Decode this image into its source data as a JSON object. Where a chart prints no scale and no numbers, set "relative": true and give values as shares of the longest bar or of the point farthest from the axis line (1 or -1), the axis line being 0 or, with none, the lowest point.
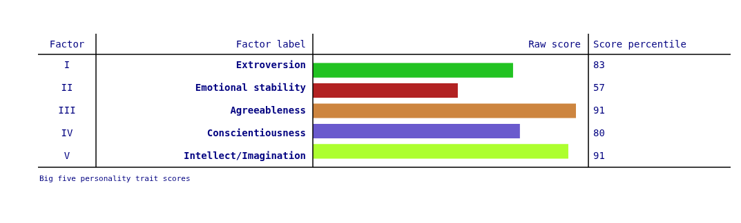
{
  "chart_data": {
    "type": "bar",
    "orientation": "horizontal",
    "relative": true,
    "xlabel": "Raw score",
    "categories": [
      "Extroversion",
      "Emotional stability",
      "Agreeableness",
      "Conscientiousness",
      "Intellect/Imagination"
    ],
    "values": [
      0.761,
      0.551,
      1,
      0.787,
      0.971
    ],
    "colors": [
      "#22c322",
      "#b22222",
      "#cd853f",
      "#6a5acd",
      "#adff2f"
    ],
    "annotations": [
      "Factor",
      "Factor label",
      "Score percentile",
      "I",
      "II",
      "III",
      "IV",
      "V",
      "83",
      "57",
      "91",
      "80",
      "91",
      "Big five personality trait scores"
    ]
  }
}
